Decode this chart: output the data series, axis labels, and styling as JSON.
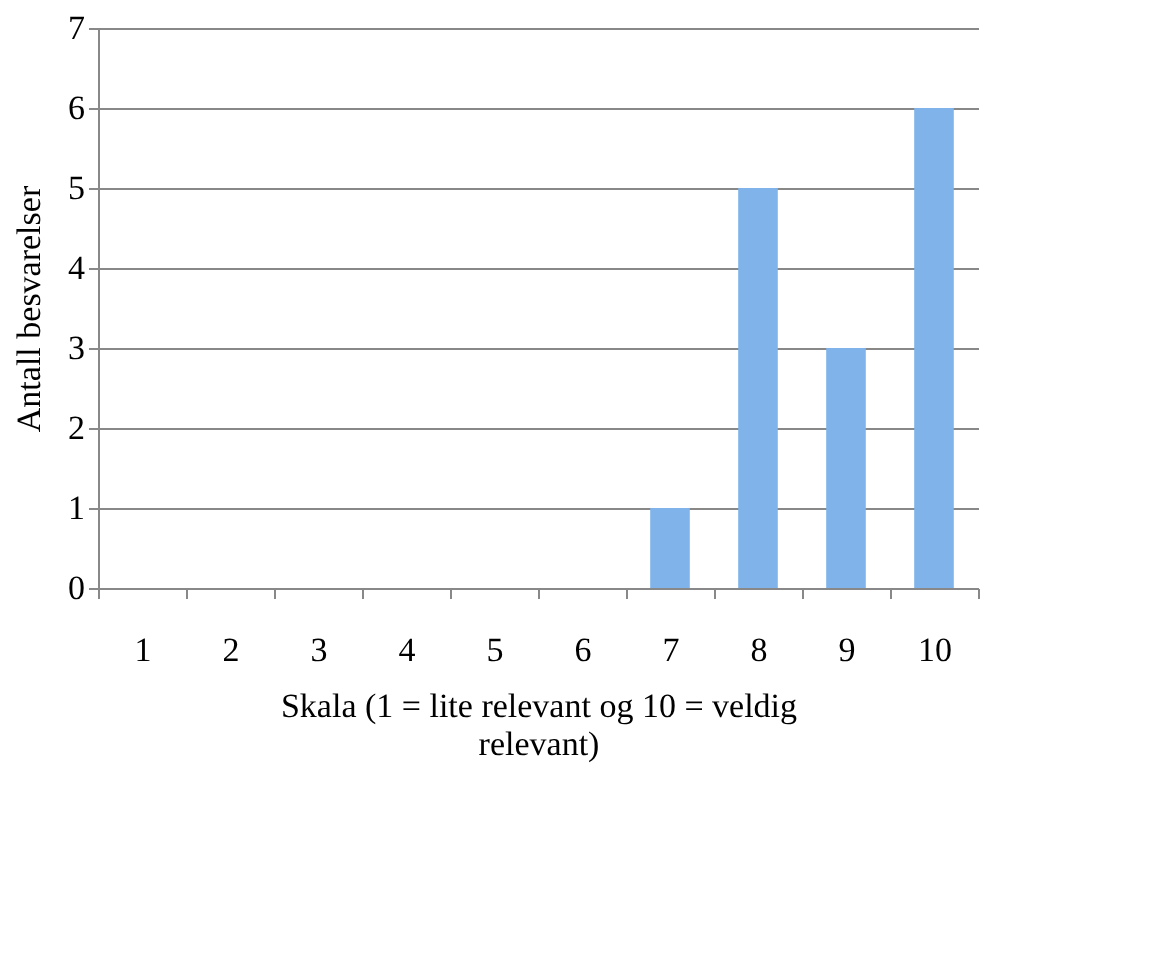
{
  "chart_data": {
    "type": "bar",
    "xlabel": "Skala (1 = lite relevant og 10 = veldig relevant)",
    "ylabel": "Antall besvarelser",
    "categories": [
      "1",
      "2",
      "3",
      "4",
      "5",
      "6",
      "7",
      "8",
      "9",
      "10"
    ],
    "values": [
      0,
      0,
      0,
      0,
      0,
      0,
      1,
      5,
      3,
      6
    ],
    "color": "#7fb3ea",
    "ylim": [
      0,
      7
    ],
    "yticks": [
      0,
      1,
      2,
      3,
      4,
      5,
      6,
      7
    ],
    "grid": "y"
  }
}
